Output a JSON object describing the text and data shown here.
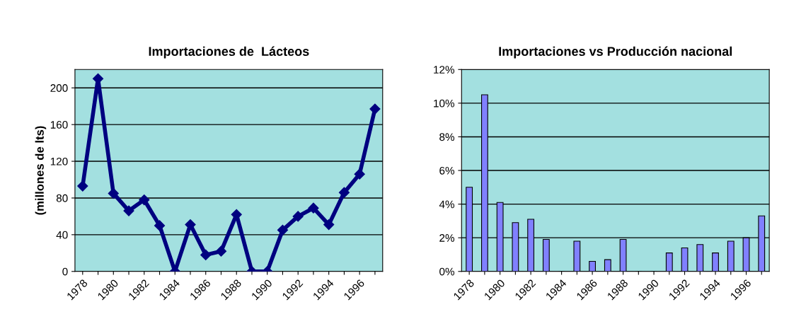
{
  "chart_data": [
    {
      "type": "line",
      "title": "Importaciones de  Lácteos",
      "ylabel": "(millones de lts)",
      "categories": [
        "1978",
        null,
        "1980",
        null,
        "1982",
        null,
        "1984",
        null,
        "1986",
        null,
        "1988",
        null,
        "1990",
        null,
        "1992",
        null,
        "1994",
        null,
        "1996",
        null
      ],
      "series": [
        {
          "color": "#000080",
          "values": [
            93,
            210,
            85,
            66,
            78,
            50,
            0,
            51,
            18,
            22,
            62,
            0,
            0,
            45,
            60,
            69,
            51,
            86,
            106,
            177
          ]
        }
      ],
      "ylim": [
        0,
        220
      ],
      "yticks": [
        0,
        40,
        80,
        120,
        160,
        200
      ],
      "grid": "y",
      "marker": "diamond",
      "line_style": "solid"
    },
    {
      "type": "bar",
      "title": "Importaciones vs Producción nacional",
      "categories": [
        "1978",
        null,
        "1980",
        null,
        "1982",
        null,
        "1984",
        null,
        "1986",
        null,
        "1988",
        null,
        "1990",
        null,
        "1992",
        null,
        "1994",
        null,
        "1996",
        null
      ],
      "series": [
        {
          "color": "#8080ff",
          "values": [
            5.0,
            10.5,
            4.1,
            2.9,
            3.1,
            1.9,
            0,
            1.8,
            0.6,
            0.7,
            1.9,
            0,
            0,
            1.1,
            1.4,
            1.6,
            1.1,
            1.8,
            2.0,
            3.3
          ]
        }
      ],
      "ylim": [
        0,
        12
      ],
      "yticks": [
        {
          "value": 0,
          "label": "0%"
        },
        {
          "value": 2,
          "label": "2%"
        },
        {
          "value": 4,
          "label": "4%"
        },
        {
          "value": 6,
          "label": "6%"
        },
        {
          "value": 8,
          "label": "8%"
        },
        {
          "value": 10,
          "label": "10%"
        },
        {
          "value": 12,
          "label": "12%"
        }
      ],
      "grid": "y"
    }
  ]
}
